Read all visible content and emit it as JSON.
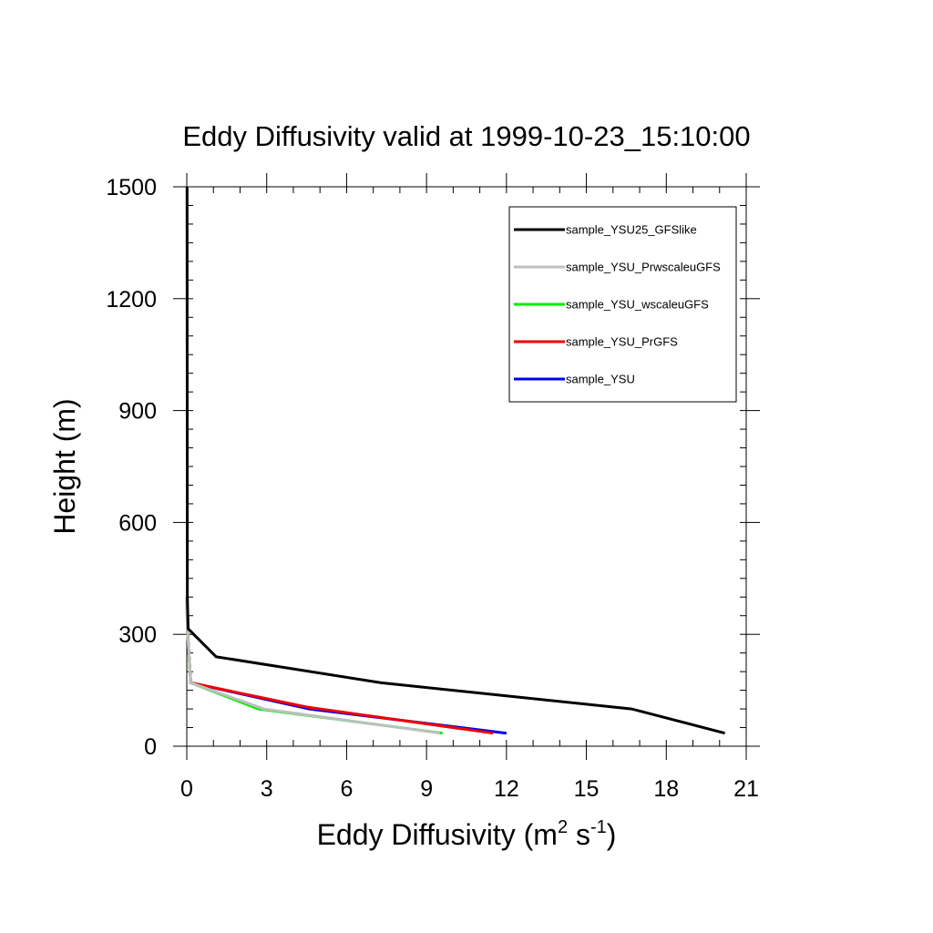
{
  "chart_data": {
    "type": "line",
    "title": "Eddy Diffusivity valid at 1999-10-23_15:10:00",
    "xlabel": {
      "base": "Eddy Diffusivity (m",
      "sup1": "2",
      "mid": " s",
      "sup2": "-1",
      "end": ")"
    },
    "ylabel": "Height (m)",
    "xlim": [
      0,
      21
    ],
    "ylim": [
      0,
      1500
    ],
    "xticks": [
      0,
      3,
      6,
      9,
      12,
      15,
      18,
      21
    ],
    "yticks": [
      0,
      300,
      600,
      900,
      1200,
      1500
    ],
    "legend_position": "top-right",
    "series": [
      {
        "name": "sample_YSU25_GFSlike",
        "color": "#000000",
        "points": [
          [
            20.2,
            35
          ],
          [
            16.7,
            100
          ],
          [
            7.3,
            170
          ],
          [
            1.1,
            240
          ],
          [
            0.05,
            315
          ],
          [
            0.02,
            400
          ],
          [
            0.01,
            1500
          ]
        ]
      },
      {
        "name": "sample_YSU_PrwscaleuGFS",
        "color": "#bfbfbf",
        "points": [
          [
            9.5,
            35
          ],
          [
            2.9,
            100
          ],
          [
            0.15,
            170
          ],
          [
            0.02,
            315
          ],
          [
            0.01,
            400
          ]
        ]
      },
      {
        "name": "sample_YSU_wscaleuGFS",
        "color": "#00ee00",
        "points": [
          [
            9.6,
            35
          ],
          [
            2.7,
            100
          ],
          [
            0.15,
            170
          ],
          [
            0.02,
            315
          ],
          [
            0.01,
            400
          ]
        ]
      },
      {
        "name": "sample_YSU_PrGFS",
        "color": "#ee0000",
        "points": [
          [
            11.5,
            35
          ],
          [
            4.5,
            105
          ],
          [
            0.15,
            170
          ],
          [
            0.02,
            315
          ],
          [
            0.01,
            400
          ]
        ]
      },
      {
        "name": "sample_YSU",
        "color": "#0000ee",
        "points": [
          [
            12.0,
            35
          ],
          [
            4.6,
            100
          ],
          [
            0.15,
            170
          ],
          [
            0.02,
            315
          ],
          [
            0.01,
            400
          ]
        ]
      }
    ]
  }
}
